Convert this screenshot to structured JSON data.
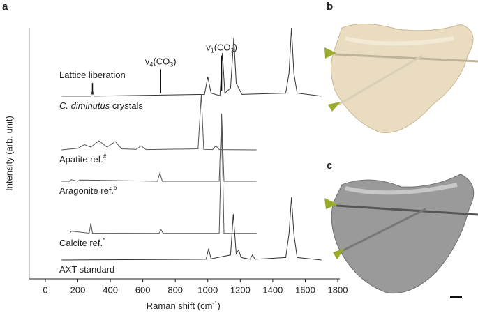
{
  "chart_data": {
    "type": "line",
    "panel_labels": [
      "a",
      "b",
      "c"
    ],
    "xlabel": {
      "text": "Raman shift (cm",
      "sup": "-1",
      "end": ")"
    },
    "ylabel": "Intensity (arb. unit)",
    "xlim": [
      -100,
      1800
    ],
    "ylim": [
      0,
      100
    ],
    "xticks": [
      0,
      200,
      400,
      600,
      800,
      1000,
      1200,
      1400,
      1600,
      1800
    ],
    "annotations": [
      {
        "parts": [
          {
            "t": "Lattice liberation"
          }
        ],
        "x": 290,
        "top": 78,
        "bottom": 73.5,
        "align": "start"
      },
      {
        "parts": [
          {
            "t": "v"
          },
          {
            "t": "4",
            "sub": true
          },
          {
            "t": "(CO"
          },
          {
            "t": "3",
            "sub": true
          },
          {
            "t": ")"
          }
        ],
        "x": 710,
        "top": 83.5,
        "bottom": 74,
        "align": "middle"
      },
      {
        "parts": [
          {
            "t": "v"
          },
          {
            "t": "1",
            "sub": true
          },
          {
            "t": "(CO"
          },
          {
            "t": "3",
            "sub": true
          },
          {
            "t": ")"
          }
        ],
        "x": 1085,
        "top": 89,
        "bottom": 75,
        "align": "middle"
      }
    ],
    "series": [
      {
        "name_italic": "C. diminutus",
        "name": "crystals",
        "color": "#333333",
        "x": [
          100,
          280,
          290,
          300,
          980,
          1000,
          1020,
          1075,
          1090,
          1105,
          1140,
          1160,
          1175,
          1190,
          1210,
          1480,
          1500,
          1515,
          1530,
          1550,
          1700
        ],
        "values": [
          72.8,
          72.8,
          75,
          72.8,
          73.5,
          80.5,
          74,
          73,
          90,
          74,
          76,
          96,
          78,
          76,
          73.5,
          74,
          82,
          100,
          82,
          74,
          72.8
        ]
      },
      {
        "name": "Apatite ref.",
        "name_sup": "#",
        "color": "#555555",
        "x": [
          100,
          200,
          240,
          280,
          330,
          380,
          430,
          470,
          560,
          590,
          620,
          940,
          960,
          975,
          1030,
          1050,
          1070,
          1300
        ],
        "values": [
          51.4,
          52,
          53.5,
          52.5,
          55,
          52.5,
          54.7,
          51.8,
          51.6,
          53,
          51.5,
          51.8,
          73.6,
          51.6,
          51.5,
          53,
          51.5,
          51.4
        ]
      },
      {
        "name": "Aragonite ref.",
        "name_sup": "o",
        "color": "#555555",
        "x": [
          100,
          150,
          160,
          200,
          210,
          690,
          705,
          720,
          1070,
          1085,
          1100,
          1300
        ],
        "values": [
          38.9,
          38.9,
          39.5,
          38.9,
          39.4,
          38.9,
          42.2,
          38.9,
          38.9,
          65.8,
          38.9,
          38.9
        ]
      },
      {
        "name": "Calcite ref.",
        "name_sup": "*",
        "color": "#555555",
        "x": [
          150,
          160,
          270,
          280,
          290,
          700,
          712,
          725,
          1070,
          1086,
          1100,
          1300
        ],
        "values": [
          18.1,
          19,
          18.2,
          22.2,
          18.2,
          18.1,
          19.6,
          18.1,
          18.1,
          61.1,
          18.1,
          18.1
        ]
      },
      {
        "name": "AXT standard",
        "color": "#333333",
        "x": [
          100,
          990,
          1005,
          1020,
          1140,
          1157,
          1175,
          1190,
          1205,
          1260,
          1275,
          1290,
          1480,
          1500,
          1515,
          1530,
          1550,
          1700
        ],
        "values": [
          7.5,
          7.8,
          12,
          8,
          9.5,
          25.8,
          10,
          11.5,
          8.5,
          7.8,
          9.5,
          7.8,
          8.5,
          18,
          32.5,
          18,
          8.5,
          7.5
        ]
      }
    ]
  }
}
